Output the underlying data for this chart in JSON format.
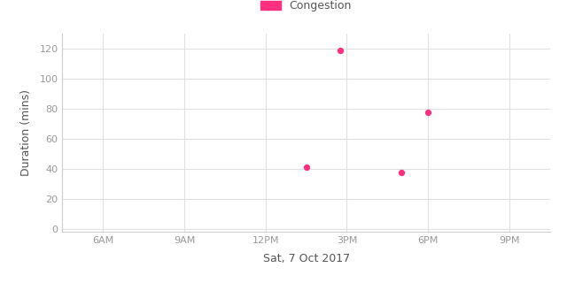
{
  "xlabel": "Sat, 7 Oct 2017",
  "ylabel": "Duration (mins)",
  "legend_label": "Congestion",
  "dot_color": "#FF3080",
  "legend_rect_color": "#FF3080",
  "background_color": "#ffffff",
  "grid_color": "#e0e0e0",
  "ylim": [
    -2,
    130
  ],
  "yticks": [
    0,
    20,
    40,
    60,
    80,
    100,
    120
  ],
  "xtick_labels": [
    "6AM",
    "9AM",
    "12PM",
    "3PM",
    "6PM",
    "9PM"
  ],
  "xtick_hours": [
    6,
    9,
    12,
    15,
    18,
    21
  ],
  "xlim": [
    4.5,
    22.5
  ],
  "data_points": [
    {
      "hour": 13.5,
      "duration": 41
    },
    {
      "hour": 14.75,
      "duration": 119
    },
    {
      "hour": 17.0,
      "duration": 38
    },
    {
      "hour": 18.0,
      "duration": 78
    }
  ],
  "dot_size": 18,
  "xlabel_fontsize": 9,
  "ylabel_fontsize": 9,
  "tick_fontsize": 8,
  "legend_fontsize": 9,
  "axis_label_color": "#555555",
  "tick_color": "#999999",
  "spine_color": "#cccccc"
}
